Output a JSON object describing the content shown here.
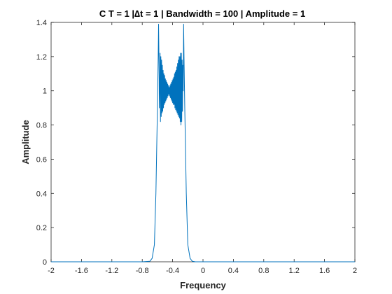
{
  "chart_data": {
    "type": "line",
    "title": "C     T = 1 |∆t = 1 | Bandwidth = 100 | Amplitude = 1",
    "xlabel": "Frequency",
    "ylabel": "Amplitude",
    "xlim": [
      -2,
      2
    ],
    "ylim": [
      0,
      1.4
    ],
    "x_ticks": [
      -2,
      -1.6,
      -1.2,
      -0.8,
      -0.4,
      0,
      0.4,
      0.8,
      1.2,
      1.6,
      2
    ],
    "x_tick_labels": [
      "-2",
      "-1.6",
      "-1.2",
      "-0.8",
      "-0.4",
      "0",
      "0.4",
      "0.8",
      "1.2",
      "1.6",
      "2"
    ],
    "y_ticks": [
      0,
      0.2,
      0.4,
      0.6,
      0.8,
      1,
      1.2,
      1.4
    ],
    "y_tick_labels": [
      "0",
      "0.2",
      "0.4",
      "0.6",
      "0.8",
      "1",
      "1.2",
      "1.4"
    ],
    "grid": false,
    "legend": "none",
    "series": [
      {
        "color": "#0072BD",
        "x": [
          -2.0,
          -0.8,
          -0.7,
          -0.67,
          -0.64,
          -0.62,
          -0.6,
          -0.59,
          -0.585,
          -0.58,
          -0.575,
          -0.57,
          -0.565,
          -0.56,
          -0.555,
          -0.55,
          -0.545,
          -0.54,
          -0.535,
          -0.53,
          -0.525,
          -0.52,
          -0.515,
          -0.51,
          -0.505,
          -0.5,
          -0.495,
          -0.49,
          -0.485,
          -0.48,
          -0.475,
          -0.47,
          -0.465,
          -0.46,
          -0.455,
          -0.45,
          -0.445,
          -0.44,
          -0.435,
          -0.43,
          -0.425,
          -0.42,
          -0.415,
          -0.41,
          -0.405,
          -0.4,
          -0.395,
          -0.39,
          -0.385,
          -0.38,
          -0.375,
          -0.37,
          -0.365,
          -0.36,
          -0.355,
          -0.35,
          -0.345,
          -0.34,
          -0.335,
          -0.33,
          -0.325,
          -0.32,
          -0.315,
          -0.31,
          -0.305,
          -0.3,
          -0.295,
          -0.29,
          -0.285,
          -0.28,
          -0.275,
          -0.27,
          -0.265,
          -0.26,
          -0.255,
          -0.25,
          -0.24,
          -0.22,
          -0.2,
          -0.17,
          -0.14,
          -0.1,
          0.0,
          2.0
        ],
        "y": [
          0.0,
          0.0,
          0.003,
          0.02,
          0.1,
          0.4,
          0.9,
          1.2,
          1.39,
          1.2,
          0.9,
          1.02,
          1.22,
          0.82,
          1.2,
          0.85,
          1.18,
          0.87,
          1.15,
          0.88,
          1.12,
          0.9,
          1.1,
          0.92,
          1.09,
          0.93,
          1.07,
          0.94,
          1.06,
          0.95,
          1.05,
          0.96,
          1.04,
          0.97,
          1.03,
          0.98,
          1.02,
          0.97,
          1.03,
          0.96,
          1.04,
          0.95,
          1.05,
          0.94,
          1.06,
          0.93,
          1.07,
          0.92,
          1.08,
          0.92,
          1.1,
          0.9,
          1.11,
          0.89,
          1.12,
          0.88,
          1.14,
          0.87,
          1.16,
          0.86,
          1.18,
          0.85,
          1.2,
          0.84,
          1.2,
          0.82,
          1.22,
          0.8,
          1.22,
          0.82,
          1.18,
          0.88,
          1.15,
          1.0,
          1.39,
          1.2,
          0.9,
          0.4,
          0.1,
          0.02,
          0.003,
          0.0,
          0.0,
          0.0
        ]
      }
    ]
  }
}
